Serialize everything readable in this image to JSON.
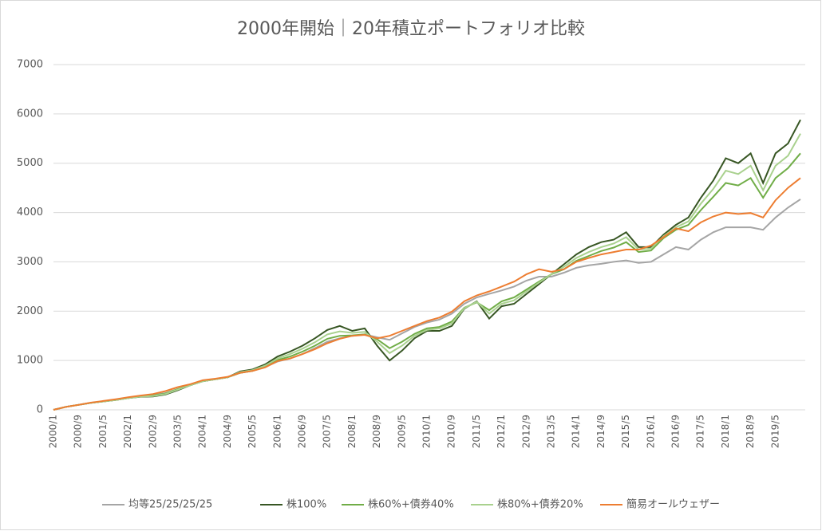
{
  "chart_data": {
    "type": "line",
    "title": "2000年開始｜20年積立ポートフォリオ比較",
    "categories": [
      "2000/1",
      null,
      "2000/9",
      null,
      "2001/5",
      null,
      "2002/1",
      null,
      "2002/9",
      null,
      "2003/5",
      null,
      "2004/1",
      null,
      "2004/9",
      null,
      "2005/5",
      null,
      "2006/1",
      null,
      "2006/9",
      null,
      "2007/5",
      null,
      "2008/1",
      null,
      "2008/9",
      null,
      "2009/5",
      null,
      "2010/1",
      null,
      "2010/9",
      null,
      "2011/5",
      null,
      "2012/1",
      null,
      "2012/9",
      null,
      "2013/5",
      null,
      "2014/1",
      null,
      "2014/9",
      null,
      "2015/5",
      null,
      "2016/1",
      null,
      "2016/9",
      null,
      "2017/5",
      null,
      "2018/1",
      null,
      "2018/9",
      null,
      "2019/5",
      null,
      null
    ],
    "series": [
      {
        "name": "均等25/25/25/25",
        "color": "#a5a5a5",
        "values": [
          0,
          60,
          100,
          140,
          170,
          200,
          240,
          270,
          300,
          340,
          420,
          500,
          580,
          620,
          660,
          750,
          790,
          870,
          980,
          1040,
          1130,
          1250,
          1380,
          1450,
          1500,
          1530,
          1470,
          1420,
          1550,
          1680,
          1770,
          1830,
          1950,
          2150,
          2280,
          2350,
          2420,
          2500,
          2620,
          2700,
          2700,
          2780,
          2880,
          2930,
          2960,
          3000,
          3030,
          2980,
          3000,
          3150,
          3300,
          3250,
          3450,
          3600,
          3700,
          3700,
          3700,
          3650,
          3900,
          4100,
          4270
        ]
      },
      {
        "name": "株100%",
        "color": "#375623",
        "values": [
          0,
          60,
          100,
          140,
          170,
          200,
          240,
          265,
          270,
          310,
          400,
          500,
          580,
          620,
          660,
          780,
          820,
          920,
          1080,
          1180,
          1300,
          1450,
          1620,
          1700,
          1600,
          1650,
          1300,
          1000,
          1200,
          1450,
          1600,
          1600,
          1700,
          2050,
          2200,
          1850,
          2100,
          2150,
          2350,
          2550,
          2750,
          2950,
          3150,
          3300,
          3400,
          3450,
          3600,
          3300,
          3300,
          3550,
          3750,
          3900,
          4300,
          4650,
          5100,
          5000,
          5200,
          4600,
          5200,
          5400,
          5880
        ]
      },
      {
        "name": "株60%+債券40%",
        "color": "#70ad47",
        "values": [
          0,
          60,
          100,
          140,
          170,
          200,
          240,
          270,
          290,
          330,
          420,
          500,
          580,
          620,
          660,
          750,
          790,
          870,
          1010,
          1080,
          1180,
          1300,
          1440,
          1500,
          1510,
          1530,
          1430,
          1250,
          1380,
          1540,
          1650,
          1680,
          1790,
          2070,
          2180,
          2020,
          2200,
          2280,
          2440,
          2600,
          2750,
          2850,
          3020,
          3120,
          3220,
          3290,
          3400,
          3200,
          3230,
          3480,
          3650,
          3750,
          4050,
          4320,
          4600,
          4550,
          4700,
          4300,
          4700,
          4900,
          5200
        ]
      },
      {
        "name": "株80%+債券20%",
        "color": "#a9d18e",
        "values": [
          0,
          60,
          100,
          140,
          170,
          200,
          240,
          268,
          280,
          320,
          410,
          500,
          580,
          620,
          660,
          765,
          805,
          895,
          1040,
          1130,
          1240,
          1370,
          1530,
          1590,
          1560,
          1580,
          1380,
          1150,
          1300,
          1500,
          1620,
          1650,
          1750,
          2060,
          2190,
          1950,
          2150,
          2220,
          2400,
          2580,
          2750,
          2900,
          3080,
          3200,
          3300,
          3370,
          3500,
          3250,
          3270,
          3520,
          3700,
          3820,
          4180,
          4480,
          4850,
          4780,
          4950,
          4450,
          4950,
          5150,
          5600
        ]
      },
      {
        "name": "簡易オールウェザー",
        "color": "#ed7d31",
        "values": [
          0,
          60,
          100,
          145,
          180,
          215,
          255,
          290,
          320,
          380,
          460,
          520,
          600,
          630,
          670,
          750,
          790,
          860,
          990,
          1040,
          1130,
          1230,
          1350,
          1440,
          1500,
          1520,
          1450,
          1500,
          1600,
          1700,
          1800,
          1870,
          1990,
          2200,
          2320,
          2400,
          2500,
          2600,
          2750,
          2850,
          2800,
          2850,
          3000,
          3080,
          3150,
          3200,
          3250,
          3250,
          3330,
          3500,
          3680,
          3620,
          3800,
          3920,
          4000,
          3970,
          3990,
          3900,
          4250,
          4500,
          4700
        ]
      }
    ],
    "ylim": [
      0,
      7000
    ],
    "yticks": [
      0,
      1000,
      2000,
      3000,
      4000,
      5000,
      6000,
      7000
    ],
    "grid": true
  }
}
